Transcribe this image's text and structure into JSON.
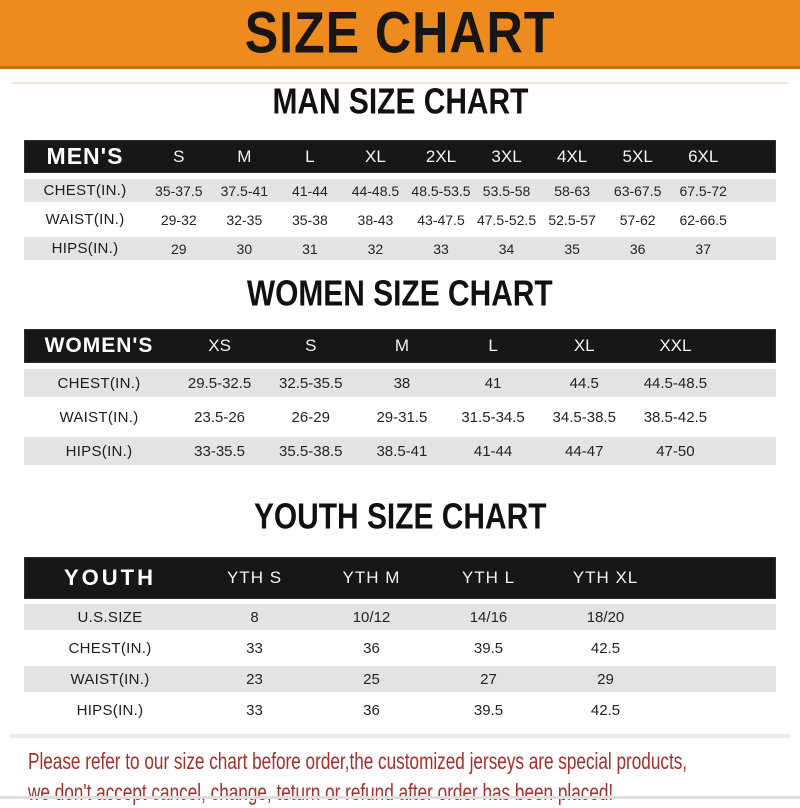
{
  "banner": {
    "title": "SIZE CHART"
  },
  "sections": [
    {
      "title": "MAN SIZE CHART",
      "table": {
        "id": "mens",
        "header_label": "MEN'S",
        "columns": [
          "S",
          "M",
          "L",
          "XL",
          "2XL",
          "3XL",
          "4XL",
          "5XL",
          "6XL"
        ],
        "rows": [
          {
            "label": "CHEST(IN.)",
            "values": [
              "35-37.5",
              "37.5-41",
              "41-44",
              "44-48.5",
              "48.5-53.5",
              "53.5-58",
              "58-63",
              "63-67.5",
              "67.5-72"
            ]
          },
          {
            "label": "WAIST(IN.)",
            "values": [
              "29-32",
              "32-35",
              "35-38",
              "38-43",
              "43-47.5",
              "47.5-52.5",
              "52.5-57",
              "57-62",
              "62-66.5"
            ]
          },
          {
            "label": "HIPS(IN.)",
            "values": [
              "29",
              "30",
              "31",
              "32",
              "33",
              "34",
              "35",
              "36",
              "37"
            ]
          }
        ]
      }
    },
    {
      "title": "WOMEN SIZE CHART",
      "table": {
        "id": "womens",
        "header_label": "WOMEN'S",
        "columns": [
          "XS",
          "S",
          "M",
          "L",
          "XL",
          "XXL"
        ],
        "rows": [
          {
            "label": "CHEST(IN.)",
            "values": [
              "29.5-32.5",
              "32.5-35.5",
              "38",
              "41",
              "44.5",
              "44.5-48.5"
            ]
          },
          {
            "label": "WAIST(IN.)",
            "values": [
              "23.5-26",
              "26-29",
              "29-31.5",
              "31.5-34.5",
              "34.5-38.5",
              "38.5-42.5"
            ]
          },
          {
            "label": "HIPS(IN.)",
            "values": [
              "33-35.5",
              "35.5-38.5",
              "38.5-41",
              "41-44",
              "44-47",
              "47-50"
            ]
          }
        ]
      }
    },
    {
      "title": "YOUTH SIZE CHART",
      "table": {
        "id": "youth",
        "header_label": "YOUTH",
        "columns": [
          "YTH S",
          "YTH M",
          "YTH L",
          "YTH XL"
        ],
        "rows": [
          {
            "label": "U.S.SIZE",
            "values": [
              "8",
              "10/12",
              "14/16",
              "18/20"
            ]
          },
          {
            "label": "CHEST(IN.)",
            "values": [
              "33",
              "36",
              "39.5",
              "42.5"
            ]
          },
          {
            "label": "WAIST(IN.)",
            "values": [
              "23",
              "25",
              "27",
              "29"
            ]
          },
          {
            "label": "HIPS(IN.)",
            "values": [
              "33",
              "36",
              "39.5",
              "42.5"
            ]
          }
        ]
      }
    }
  ],
  "footer": {
    "line1": "Please refer to our size chart before order,the customized jerseys are special products,",
    "line2": "we don't accept cancel, change, teturn or refund after order has been placed!"
  },
  "colors": {
    "banner_orange": "#EE8B1E",
    "header_black": "#171717",
    "row_gray": "#E3E3E3",
    "note_red": "#A4302B"
  }
}
